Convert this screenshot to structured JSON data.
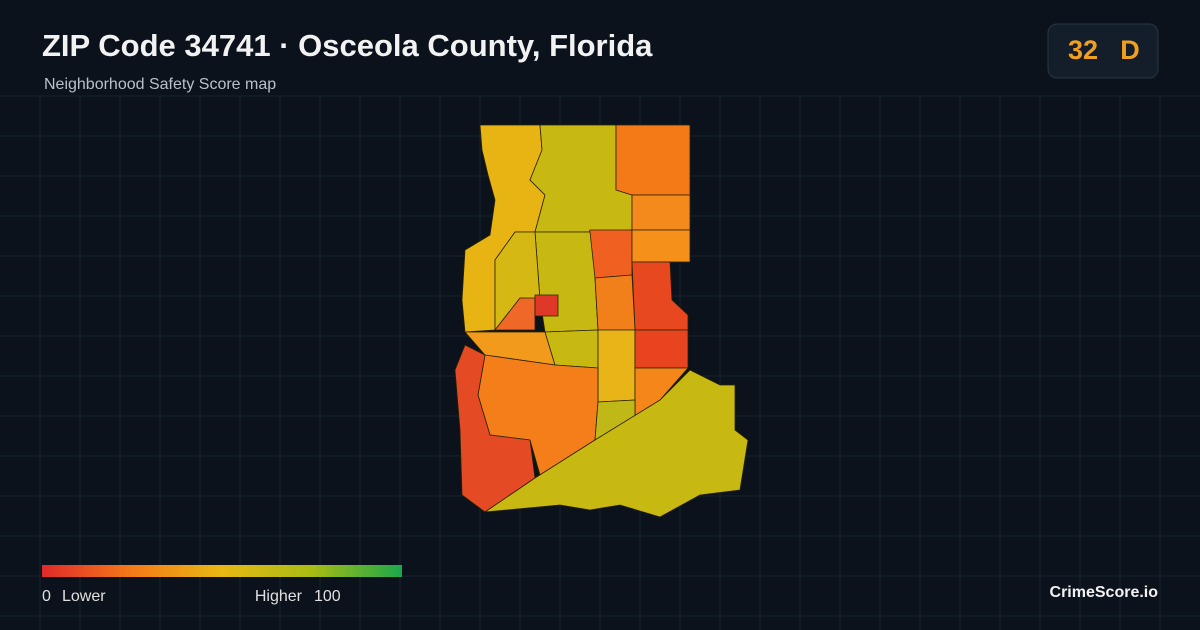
{
  "header": {
    "title": "ZIP Code 34741 · Osceola County, Florida",
    "subtitle": "Neighborhood Safety Score map"
  },
  "score": {
    "value": 32,
    "grade": "D"
  },
  "legend": {
    "min": 0,
    "min_label": "Lower",
    "max_label": "Higher",
    "max": 100
  },
  "brand": "CrimeScore.io"
}
